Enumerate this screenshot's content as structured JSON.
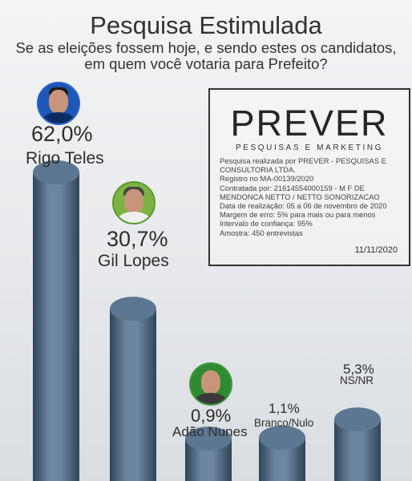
{
  "header": {
    "title": "Pesquisa Estimulada",
    "question_line1": "Se as eleições fossem hoje, e sendo estes os candidatos,",
    "question_line2": "em quem você votaria para Prefeito?"
  },
  "infobox": {
    "brand": "PREVER",
    "brand_sub": "PESQUISAS E MARKETING",
    "lines": [
      "Pesquisa realizada por PREVER - PESQUISAS E",
      "CONSULTORIA LTDA.",
      "Registro no MA-00139/2020",
      "Contratada por: 21614554000159 - M F DE",
      "MENDONCA NETTO / NETTO SONORIZACAO",
      "Data de realização: 05 a 06 de novembro de 2020",
      "Margem de erro: 5% para mais ou para menos",
      "Intervalo de confiança: 95%",
      "Amostra: 450 entrevistas"
    ],
    "date": "11/11/2020"
  },
  "colors": {
    "bar_light": "#6d86a0",
    "bar_dark": "#2e4459",
    "bar_top": "#5c7791"
  },
  "chart_data": {
    "type": "bar",
    "categories": [
      "Rigo Teles",
      "Gil Lopes",
      "Adão Nunes",
      "Branco/Nulo",
      "NS/NR"
    ],
    "values": [
      62.0,
      30.7,
      0.9,
      1.1,
      5.3
    ],
    "value_labels": [
      "62,0%",
      "30,7%",
      "0,9%",
      "1,1%",
      "5,3%"
    ],
    "unit": "%",
    "ylim": [
      0,
      62
    ],
    "grid": false,
    "legend": "none"
  },
  "icons": {
    "avatar1": "candidate-photo-rigo-teles",
    "avatar2": "candidate-photo-gil-lopes",
    "avatar3": "candidate-photo-adao-nunes"
  }
}
